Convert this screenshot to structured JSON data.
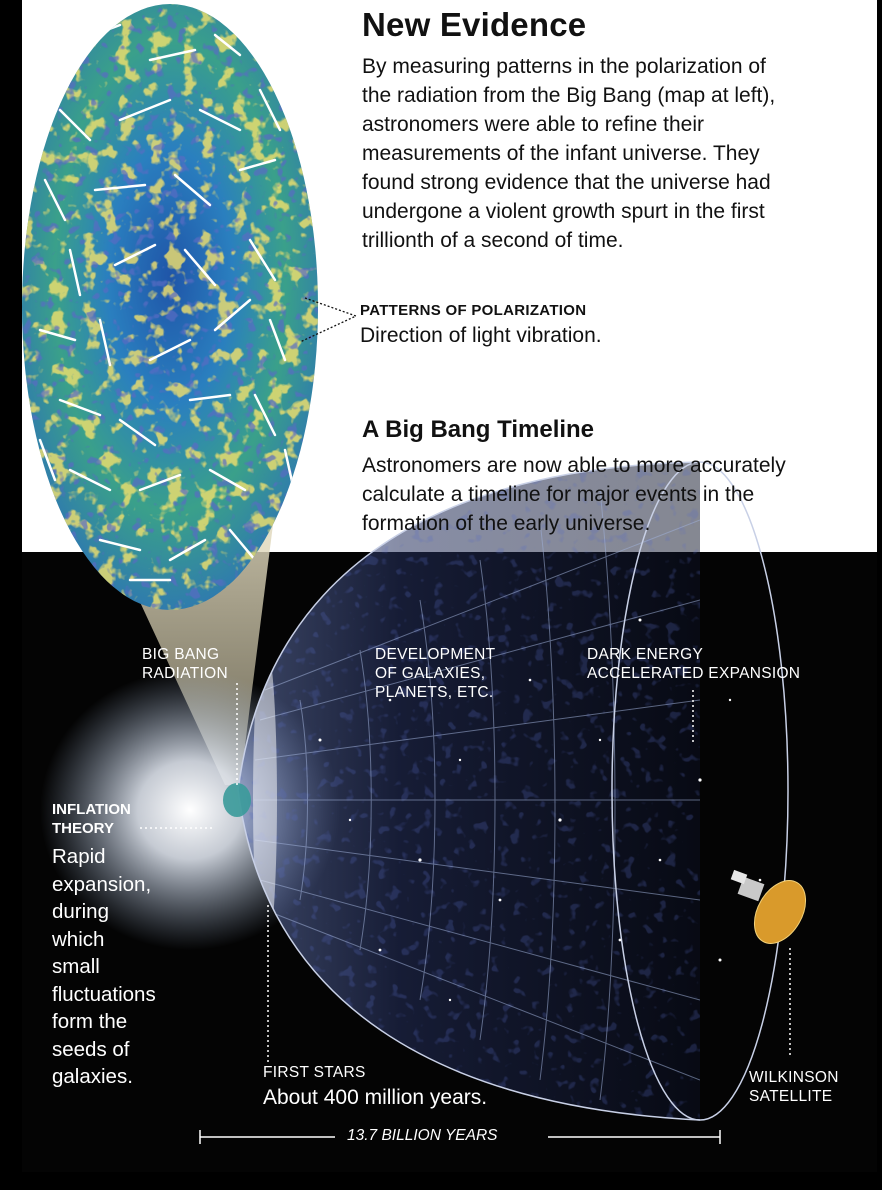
{
  "new_evidence": {
    "heading": "New Evidence",
    "lines": [
      "By measuring patterns in the polarization of",
      "the radiation from the Big Bang (map at left),",
      "astronomers were able to refine their",
      "measurements of the infant universe. They",
      "found strong evidence that the universe had",
      "undergone a violent growth spurt in the first",
      "trillionth of a second of time."
    ]
  },
  "polarization": {
    "label": "PATTERNS OF POLARIZATION",
    "description": "Direction of light vibration."
  },
  "timeline": {
    "heading": "A Big Bang Timeline",
    "lines": [
      "Astronomers are now able to more accurately",
      "calculate a timeline for major events in the",
      "formation of the early universe."
    ]
  },
  "labels": {
    "big_bang_radiation": [
      "BIG BANG",
      "RADIATION"
    ],
    "development": [
      "DEVELOPMENT",
      "OF GALAXIES,",
      "PLANETS, ETC."
    ],
    "dark_energy": [
      "DARK ENERGY",
      "ACCELERATED EXPANSION"
    ],
    "inflation_title": [
      "INFLATION",
      "THEORY"
    ],
    "inflation_desc": [
      "Rapid",
      "expansion,",
      "during",
      "which",
      "small",
      "fluctuations",
      "form the",
      "seeds of",
      "galaxies."
    ],
    "first_stars": "FIRST  STARS",
    "first_stars_time": "About 400 million years.",
    "wilkinson": [
      "WILKINSON",
      "SATELLITE"
    ],
    "total_time": "13.7 BILLION YEARS"
  },
  "colors": {
    "background": "#000000",
    "panel": "#ffffff",
    "map_blue": "#2f74c0",
    "map_green": "#46b07a",
    "map_yellow": "#e3c636",
    "map_red": "#d0421c",
    "satellite_gold": "#d99a2b"
  },
  "icons": [
    "cmb-sky-map",
    "expanding-universe-cone",
    "wilkinson-satellite-icon"
  ]
}
